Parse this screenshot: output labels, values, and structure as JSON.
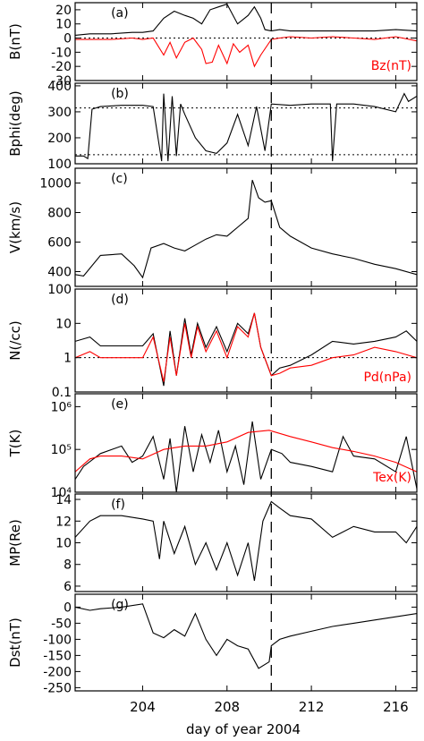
{
  "figure": {
    "xlabel": "day of year 2004",
    "xticks": [
      204,
      208,
      212,
      216
    ],
    "xlim": [
      200.8,
      217.0
    ],
    "event_day": 210.1
  },
  "chart_data": [
    {
      "type": "line",
      "panel": "(a)",
      "ylabel": "B(nT)",
      "ylim": [
        -30,
        25
      ],
      "yticks": [
        -30,
        -20,
        -10,
        0,
        10,
        20
      ],
      "reference_lines": [
        0
      ],
      "series": [
        {
          "name": "",
          "color": "#000000",
          "x": [
            200.8,
            201.5,
            202.5,
            203.5,
            204.0,
            204.5,
            205.0,
            205.5,
            206.0,
            206.4,
            206.8,
            207.2,
            207.6,
            208.0,
            208.5,
            209.0,
            209.3,
            209.6,
            209.8,
            210.1,
            210.5,
            211.0,
            212.0,
            213.0,
            214.0,
            215.0,
            216.0,
            217.0
          ],
          "y": [
            2,
            3,
            3,
            4,
            4,
            5,
            14,
            19,
            16,
            14,
            10,
            20,
            22,
            24,
            10,
            16,
            22,
            14,
            6,
            5,
            6,
            5,
            5,
            5,
            5,
            5,
            6,
            5
          ]
        },
        {
          "name": "Bz(nT)",
          "color": "#ff0000",
          "x": [
            200.8,
            201.5,
            202.5,
            203.5,
            204.0,
            204.5,
            205.0,
            205.3,
            205.6,
            206.0,
            206.4,
            206.8,
            207.0,
            207.3,
            207.6,
            208.0,
            208.3,
            208.6,
            209.0,
            209.3,
            209.6,
            210.1,
            210.5,
            211.0,
            212.0,
            213.0,
            214.0,
            215.0,
            216.0,
            217.0
          ],
          "y": [
            -1,
            -1,
            -1,
            0,
            -1,
            0,
            -12,
            -3,
            -14,
            -3,
            0,
            -8,
            -18,
            -17,
            -5,
            -18,
            -4,
            -10,
            -5,
            -20,
            -12,
            -1,
            0,
            1,
            0,
            1,
            0,
            -1,
            1,
            -2
          ]
        }
      ]
    },
    {
      "type": "line",
      "panel": "(b)",
      "ylabel": "Bphi(deg)",
      "ylim": [
        100,
        410
      ],
      "yticks": [
        100,
        200,
        300,
        400
      ],
      "reference_lines": [
        135,
        315
      ],
      "series": [
        {
          "name": "",
          "color": "#000000",
          "x": [
            200.8,
            201.2,
            201.4,
            201.6,
            202.0,
            203.0,
            204.0,
            204.5,
            204.9,
            205.0,
            205.2,
            205.4,
            205.6,
            205.8,
            206.0,
            206.5,
            207.0,
            207.5,
            208.0,
            208.5,
            209.0,
            209.4,
            209.8,
            210.1,
            211.0,
            212.0,
            212.9,
            213.0,
            213.2,
            214.0,
            215.0,
            216.0,
            216.4,
            216.6,
            217.0
          ],
          "y": [
            130,
            130,
            120,
            310,
            320,
            325,
            325,
            320,
            110,
            370,
            110,
            360,
            130,
            330,
            290,
            200,
            150,
            140,
            180,
            290,
            170,
            320,
            150,
            330,
            325,
            330,
            330,
            110,
            330,
            330,
            320,
            300,
            370,
            340,
            360
          ]
        }
      ]
    },
    {
      "type": "line",
      "panel": "(c)",
      "ylabel": "V(km/s)",
      "ylim": [
        300,
        1100
      ],
      "yticks": [
        400,
        600,
        800,
        1000
      ],
      "series": [
        {
          "name": "",
          "color": "#000000",
          "x": [
            200.8,
            201.2,
            202.0,
            203.0,
            203.6,
            204.0,
            204.4,
            205.0,
            205.5,
            206.0,
            206.5,
            207.0,
            207.5,
            208.0,
            208.5,
            209.0,
            209.2,
            209.5,
            209.8,
            210.1,
            210.5,
            211.0,
            212.0,
            213.0,
            214.0,
            215.0,
            216.0,
            217.0
          ],
          "y": [
            380,
            370,
            510,
            520,
            440,
            360,
            560,
            590,
            560,
            540,
            580,
            620,
            650,
            640,
            700,
            760,
            1020,
            900,
            870,
            880,
            700,
            640,
            560,
            520,
            490,
            450,
            420,
            380
          ]
        }
      ]
    },
    {
      "type": "line",
      "panel": "(d)",
      "ylabel": "N(/cc)",
      "yscale": "log",
      "ylim": [
        0.1,
        100
      ],
      "yticks": [
        0.1,
        1.0,
        10.0,
        100.0
      ],
      "reference_lines": [
        1.0
      ],
      "series": [
        {
          "name": "",
          "color": "#000000",
          "x": [
            200.8,
            201.5,
            202.0,
            203.0,
            204.0,
            204.5,
            205.0,
            205.3,
            205.6,
            206.0,
            206.3,
            206.6,
            207.0,
            207.5,
            208.0,
            208.5,
            209.0,
            209.3,
            209.6,
            210.1,
            210.5,
            211.0,
            212.0,
            213.0,
            214.0,
            215.0,
            216.0,
            216.5,
            217.0
          ],
          "y": [
            3,
            4,
            2.2,
            2.2,
            2.2,
            5,
            0.15,
            6,
            0.3,
            14,
            1.2,
            10,
            2,
            8,
            1.5,
            10,
            5,
            20,
            2,
            0.3,
            0.5,
            0.6,
            1.2,
            3,
            2.5,
            3,
            4,
            6,
            3
          ]
        },
        {
          "name": "Pd(nPa)",
          "color": "#ff0000",
          "x": [
            200.8,
            201.5,
            202.0,
            203.0,
            204.0,
            204.5,
            205.0,
            205.3,
            205.6,
            206.0,
            206.3,
            206.6,
            207.0,
            207.5,
            208.0,
            208.5,
            209.0,
            209.3,
            209.6,
            210.1,
            210.5,
            211.0,
            212.0,
            213.0,
            214.0,
            215.0,
            216.0,
            217.0
          ],
          "y": [
            1,
            1.5,
            1.0,
            1.0,
            1.0,
            4,
            0.2,
            4,
            0.3,
            10,
            1,
            8,
            1.5,
            6,
            1,
            8,
            4,
            20,
            2,
            0.3,
            0.35,
            0.5,
            0.6,
            1,
            1.2,
            2,
            1.5,
            1
          ]
        }
      ]
    },
    {
      "type": "line",
      "panel": "(e)",
      "ylabel": "T(K)",
      "yscale": "log",
      "ylim": [
        10000,
        2000000
      ],
      "yticks": [
        10000,
        100000,
        1000000
      ],
      "ytick_labels": [
        "10⁴",
        "10⁵",
        "10⁶"
      ],
      "series": [
        {
          "name": "",
          "color": "#000000",
          "x": [
            200.8,
            201.2,
            202.0,
            203.0,
            203.5,
            204.0,
            204.5,
            205.0,
            205.3,
            205.6,
            206.0,
            206.4,
            206.8,
            207.2,
            207.6,
            208.0,
            208.4,
            208.8,
            209.2,
            209.6,
            210.1,
            210.6,
            211.0,
            212.0,
            213.0,
            213.5,
            214.0,
            215.0,
            216.0,
            216.5,
            217.0
          ],
          "y": [
            20000,
            40000,
            80000,
            120000,
            50000,
            70000,
            200000,
            20000,
            180000,
            10000,
            350000,
            30000,
            220000,
            50000,
            280000,
            30000,
            120000,
            15000,
            450000,
            20000,
            100000,
            80000,
            50000,
            40000,
            30000,
            200000,
            70000,
            60000,
            30000,
            200000,
            12000
          ]
        },
        {
          "name": "Tex(K)",
          "color": "#ff0000",
          "x": [
            200.8,
            201.5,
            202.0,
            203.0,
            204.0,
            205.0,
            206.0,
            207.0,
            208.0,
            209.0,
            210.0,
            211.0,
            212.0,
            213.0,
            214.0,
            215.0,
            216.0,
            217.0
          ],
          "y": [
            30000,
            60000,
            70000,
            70000,
            60000,
            100000,
            120000,
            120000,
            150000,
            250000,
            280000,
            200000,
            150000,
            110000,
            90000,
            70000,
            50000,
            30000
          ]
        }
      ]
    },
    {
      "type": "line",
      "panel": "(f)",
      "ylabel": "MP(Re)",
      "ylim": [
        5.5,
        14.5
      ],
      "yticks": [
        6,
        8,
        10,
        12,
        14
      ],
      "series": [
        {
          "name": "",
          "color": "#000000",
          "x": [
            200.8,
            201.5,
            202.0,
            203.0,
            204.0,
            204.5,
            204.8,
            205.0,
            205.5,
            206.0,
            206.5,
            207.0,
            207.5,
            208.0,
            208.5,
            209.0,
            209.3,
            209.7,
            210.1,
            210.5,
            211.0,
            212.0,
            213.0,
            214.0,
            215.0,
            216.0,
            216.5,
            217.0
          ],
          "y": [
            10.5,
            12,
            12.5,
            12.5,
            12.2,
            12,
            8.5,
            12,
            9,
            11.5,
            8,
            10,
            7.5,
            10,
            7,
            10,
            6.5,
            12,
            13.8,
            13.2,
            12.5,
            12.2,
            10.5,
            11.5,
            11,
            11,
            10,
            11.5
          ]
        }
      ]
    },
    {
      "type": "line",
      "panel": "(g)",
      "ylabel": "Dst(nT)",
      "ylim": [
        -260,
        40
      ],
      "yticks": [
        -250,
        -200,
        -150,
        -100,
        -50,
        0
      ],
      "series": [
        {
          "name": "",
          "color": "#000000",
          "x": [
            200.8,
            201.5,
            202.0,
            203.0,
            204.0,
            204.5,
            205.0,
            205.5,
            206.0,
            206.5,
            207.0,
            207.5,
            208.0,
            208.5,
            209.0,
            209.5,
            210.0,
            210.1,
            210.5,
            211.0,
            212.0,
            213.0,
            214.0,
            215.0,
            216.0,
            217.0
          ],
          "y": [
            0,
            -10,
            -5,
            0,
            10,
            -80,
            -95,
            -70,
            -90,
            -20,
            -100,
            -150,
            -100,
            -120,
            -130,
            -190,
            -170,
            -120,
            -100,
            -90,
            -75,
            -60,
            -50,
            -40,
            -30,
            -20
          ]
        }
      ]
    }
  ],
  "panels": [
    {
      "tag": "(a)",
      "ylabel": "B(nT)",
      "legend": "Bz(nT)"
    },
    {
      "tag": "(b)",
      "ylabel": "Bphi(deg)",
      "legend": ""
    },
    {
      "tag": "(c)",
      "ylabel": "V(km/s)",
      "legend": ""
    },
    {
      "tag": "(d)",
      "ylabel": "N(/cc)",
      "legend": "Pd(nPa)"
    },
    {
      "tag": "(e)",
      "ylabel": "T(K)",
      "legend": "Tex(K)"
    },
    {
      "tag": "(f)",
      "ylabel": "MP(Re)",
      "legend": ""
    },
    {
      "tag": "(g)",
      "ylabel": "Dst(nT)",
      "legend": ""
    }
  ]
}
